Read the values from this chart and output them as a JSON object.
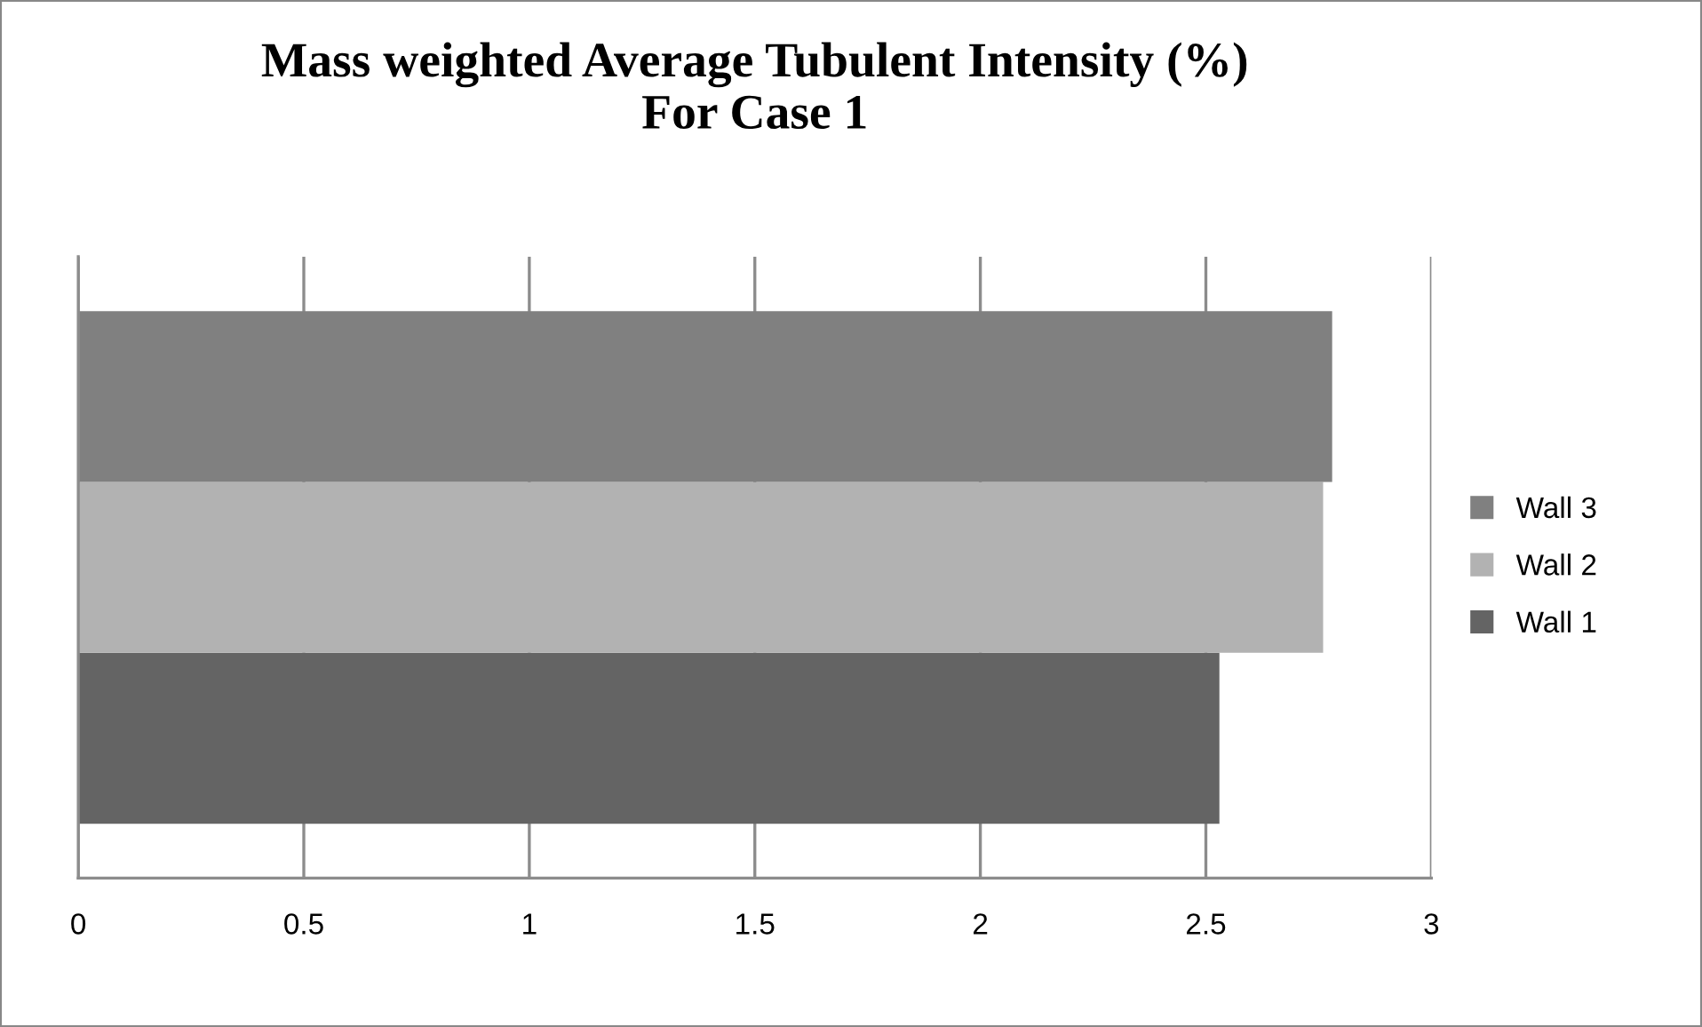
{
  "chart_data": {
    "type": "bar",
    "orientation": "horizontal",
    "title": "Mass weighted Average Tubulent Intensity (%)\nFor Case 1",
    "categories": [
      null
    ],
    "series": [
      {
        "name": "Wall 1",
        "color": "#646464",
        "values": [
          2.53
        ]
      },
      {
        "name": "Wall 2",
        "color": "#b2b2b2",
        "values": [
          2.76
        ]
      },
      {
        "name": "Wall 3",
        "color": "#808080",
        "values": [
          2.78
        ]
      }
    ],
    "xlim": [
      0,
      3
    ],
    "xticks": [
      0,
      0.5,
      1,
      1.5,
      2,
      2.5,
      3
    ],
    "grid": "x",
    "legend": "right"
  }
}
